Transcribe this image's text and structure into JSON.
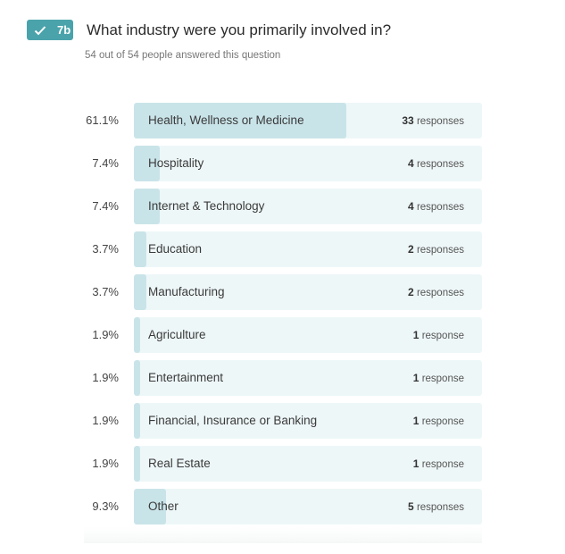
{
  "question": {
    "number": "7b",
    "title": "What industry were you primarily involved in?",
    "subtitle": "54 out of 54 people answered this question",
    "accent": "#4aa3ab"
  },
  "chart_data": {
    "type": "bar",
    "orientation": "horizontal",
    "title": "What industry were you primarily involved in?",
    "categories": [
      "Health, Wellness or Medicine",
      "Hospitality",
      "Internet & Technology",
      "Education",
      "Manufacturing",
      "Agriculture",
      "Entertainment",
      "Financial, Insurance or Banking",
      "Real Estate",
      "Other"
    ],
    "percents": [
      "61.1%",
      "7.4%",
      "7.4%",
      "3.7%",
      "3.7%",
      "1.9%",
      "1.9%",
      "1.9%",
      "1.9%",
      "9.3%"
    ],
    "values": [
      61.1,
      7.4,
      7.4,
      3.7,
      3.7,
      1.9,
      1.9,
      1.9,
      1.9,
      9.3
    ],
    "counts": [
      33,
      4,
      4,
      2,
      2,
      1,
      1,
      1,
      1,
      5
    ],
    "count_units": [
      "responses",
      "responses",
      "responses",
      "responses",
      "responses",
      "response",
      "response",
      "response",
      "response",
      "responses"
    ],
    "xlim": [
      0,
      100
    ]
  }
}
